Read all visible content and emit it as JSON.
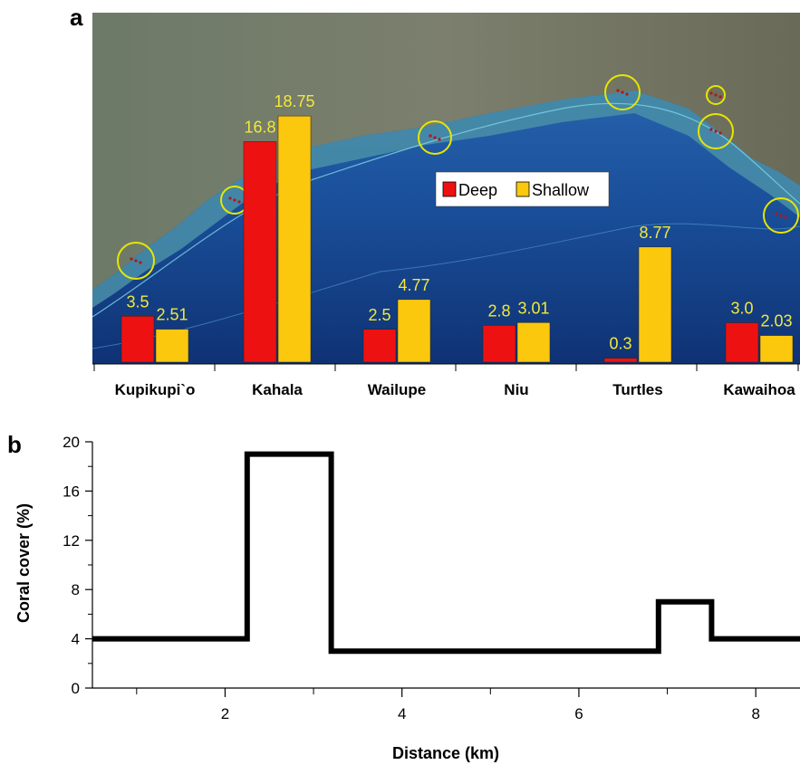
{
  "chart_data": [
    {
      "panel": "a",
      "type": "bar",
      "categories": [
        "Kupikupi`o",
        "Kahala",
        "Wailupe",
        "Niu",
        "Turtles",
        "Kawaihoa"
      ],
      "series": [
        {
          "name": "Deep",
          "color": "#ee1111",
          "values": [
            3.5,
            16.8,
            2.5,
            2.8,
            0.3,
            3.0
          ],
          "labels": [
            "3.5",
            "16.8",
            "2.5",
            "2.8",
            "0.3",
            "3.0"
          ]
        },
        {
          "name": "Shallow",
          "color": "#fbc80d",
          "values": [
            2.51,
            18.75,
            4.77,
            3.01,
            8.77,
            2.03
          ],
          "labels": [
            "2.51",
            "18.75",
            "4.77",
            "3.01",
            "8.77",
            "2.03"
          ]
        }
      ],
      "legend_position": "top-center",
      "background": "satellite image of coastline with circled survey sites",
      "label_color": "#f2e83a"
    },
    {
      "panel": "b",
      "type": "line",
      "xlabel": "Distance (km)",
      "ylabel": "Coral cover (%)",
      "xlim": [
        0.5,
        8.5
      ],
      "ylim": [
        0,
        20
      ],
      "xticks": [
        "2",
        "4",
        "6",
        "8"
      ],
      "yticks": [
        "0",
        "4",
        "8",
        "12",
        "16",
        "20"
      ],
      "x": [
        0.5,
        2.25,
        2.25,
        3.2,
        3.2,
        6.9,
        6.9,
        7.5,
        7.5,
        8.5
      ],
      "y": [
        4,
        4,
        19,
        19,
        3,
        3,
        7,
        7,
        4,
        4
      ],
      "line_color": "#000000"
    }
  ]
}
